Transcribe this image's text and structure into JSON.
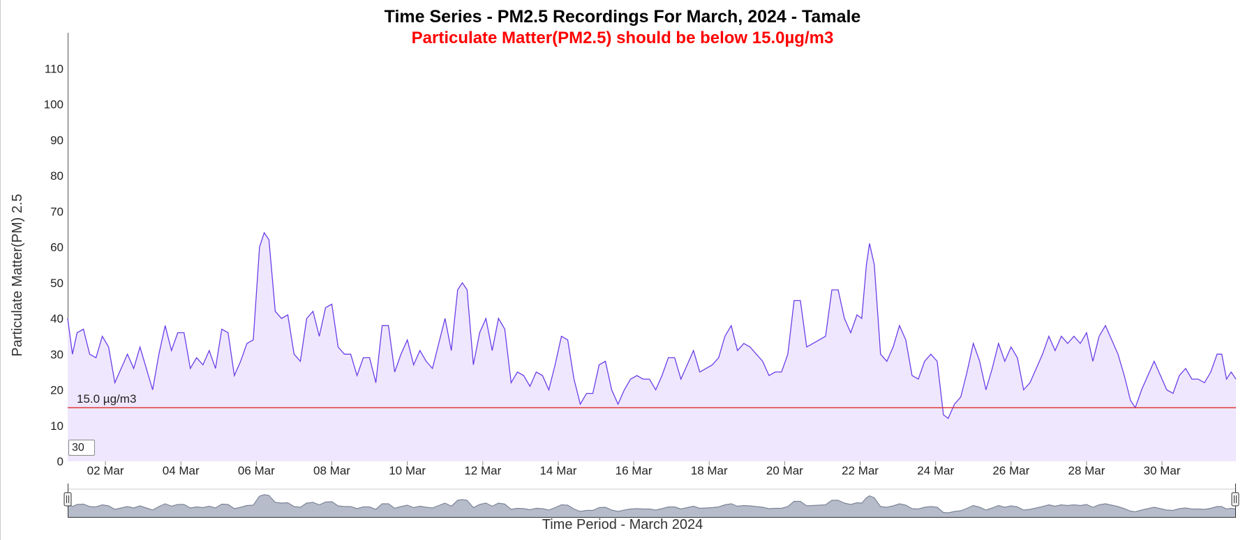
{
  "colors": {
    "line": "#6a3de8",
    "area_fill": "#efe7fd",
    "threshold": "#e03a3a",
    "subtitle": "#ff0000",
    "navigator_fill": "#b7bccb",
    "navigator_line": "#7d8597"
  },
  "rolling_period": "30",
  "chart_data": {
    "type": "area",
    "title": "Time Series - PM2.5 Recordings For March, 2024 - Tamale",
    "subtitle": "Particulate Matter(PM2.5) should be below 15.0µg/m3",
    "ylabel": "Particulate Matter(PM) 2.5",
    "xlabel": "Time Period - March 2024",
    "ylim": [
      0,
      120
    ],
    "y_ticks": [
      "0",
      "10",
      "20",
      "30",
      "40",
      "50",
      "60",
      "70",
      "80",
      "90",
      "100",
      "110"
    ],
    "x_ticks": [
      "02 Mar",
      "04 Mar",
      "06 Mar",
      "08 Mar",
      "10 Mar",
      "12 Mar",
      "14 Mar",
      "16 Mar",
      "18 Mar",
      "20 Mar",
      "22 Mar",
      "24 Mar",
      "26 Mar",
      "28 Mar",
      "30 Mar"
    ],
    "threshold": {
      "value": 15.0,
      "label": "15.0 µg/m3"
    },
    "x_start": "2024-03-01T00:00",
    "x_end": "2024-03-31T23:00",
    "series": [
      {
        "values": [
          [
            "2024-03-01T00:00",
            40
          ],
          [
            "2024-03-01T03:00",
            30
          ],
          [
            "2024-03-01T06:00",
            36
          ],
          [
            "2024-03-01T10:00",
            37
          ],
          [
            "2024-03-01T14:00",
            30
          ],
          [
            "2024-03-01T18:00",
            29
          ],
          [
            "2024-03-01T22:00",
            35
          ],
          [
            "2024-03-02T02:00",
            32
          ],
          [
            "2024-03-02T06:00",
            22
          ],
          [
            "2024-03-02T10:00",
            26
          ],
          [
            "2024-03-02T14:00",
            30
          ],
          [
            "2024-03-02T18:00",
            26
          ],
          [
            "2024-03-02T22:00",
            32
          ],
          [
            "2024-03-03T02:00",
            26
          ],
          [
            "2024-03-03T06:00",
            20
          ],
          [
            "2024-03-03T10:00",
            30
          ],
          [
            "2024-03-03T14:00",
            38
          ],
          [
            "2024-03-03T18:00",
            31
          ],
          [
            "2024-03-03T22:00",
            36
          ],
          [
            "2024-03-04T02:00",
            36
          ],
          [
            "2024-03-04T06:00",
            26
          ],
          [
            "2024-03-04T10:00",
            29
          ],
          [
            "2024-03-04T14:00",
            27
          ],
          [
            "2024-03-04T18:00",
            31
          ],
          [
            "2024-03-04T22:00",
            26
          ],
          [
            "2024-03-05T02:00",
            37
          ],
          [
            "2024-03-05T06:00",
            36
          ],
          [
            "2024-03-05T10:00",
            24
          ],
          [
            "2024-03-05T14:00",
            28
          ],
          [
            "2024-03-05T18:00",
            33
          ],
          [
            "2024-03-05T22:00",
            34
          ],
          [
            "2024-03-06T02:00",
            60
          ],
          [
            "2024-03-06T05:00",
            64
          ],
          [
            "2024-03-06T08:00",
            62
          ],
          [
            "2024-03-06T12:00",
            42
          ],
          [
            "2024-03-06T16:00",
            40
          ],
          [
            "2024-03-06T20:00",
            41
          ],
          [
            "2024-03-07T00:00",
            30
          ],
          [
            "2024-03-07T04:00",
            28
          ],
          [
            "2024-03-07T08:00",
            40
          ],
          [
            "2024-03-07T12:00",
            42
          ],
          [
            "2024-03-07T16:00",
            35
          ],
          [
            "2024-03-07T20:00",
            43
          ],
          [
            "2024-03-08T00:00",
            44
          ],
          [
            "2024-03-08T04:00",
            32
          ],
          [
            "2024-03-08T08:00",
            30
          ],
          [
            "2024-03-08T12:00",
            30
          ],
          [
            "2024-03-08T16:00",
            24
          ],
          [
            "2024-03-08T20:00",
            29
          ],
          [
            "2024-03-09T00:00",
            29
          ],
          [
            "2024-03-09T04:00",
            22
          ],
          [
            "2024-03-09T08:00",
            38
          ],
          [
            "2024-03-09T12:00",
            38
          ],
          [
            "2024-03-09T16:00",
            25
          ],
          [
            "2024-03-09T20:00",
            30
          ],
          [
            "2024-03-10T00:00",
            34
          ],
          [
            "2024-03-10T04:00",
            27
          ],
          [
            "2024-03-10T08:00",
            31
          ],
          [
            "2024-03-10T12:00",
            28
          ],
          [
            "2024-03-10T16:00",
            26
          ],
          [
            "2024-03-10T20:00",
            33
          ],
          [
            "2024-03-11T00:00",
            40
          ],
          [
            "2024-03-11T04:00",
            31
          ],
          [
            "2024-03-11T08:00",
            48
          ],
          [
            "2024-03-11T11:00",
            50
          ],
          [
            "2024-03-11T14:00",
            48
          ],
          [
            "2024-03-11T18:00",
            27
          ],
          [
            "2024-03-11T22:00",
            36
          ],
          [
            "2024-03-12T02:00",
            40
          ],
          [
            "2024-03-12T06:00",
            31
          ],
          [
            "2024-03-12T10:00",
            40
          ],
          [
            "2024-03-12T14:00",
            37
          ],
          [
            "2024-03-12T18:00",
            22
          ],
          [
            "2024-03-12T22:00",
            25
          ],
          [
            "2024-03-13T02:00",
            24
          ],
          [
            "2024-03-13T06:00",
            21
          ],
          [
            "2024-03-13T10:00",
            25
          ],
          [
            "2024-03-13T14:00",
            24
          ],
          [
            "2024-03-13T18:00",
            20
          ],
          [
            "2024-03-13T22:00",
            27
          ],
          [
            "2024-03-14T02:00",
            35
          ],
          [
            "2024-03-14T06:00",
            34
          ],
          [
            "2024-03-14T10:00",
            23
          ],
          [
            "2024-03-14T14:00",
            16
          ],
          [
            "2024-03-14T18:00",
            19
          ],
          [
            "2024-03-14T22:00",
            19
          ],
          [
            "2024-03-15T02:00",
            27
          ],
          [
            "2024-03-15T06:00",
            28
          ],
          [
            "2024-03-15T10:00",
            20
          ],
          [
            "2024-03-15T14:00",
            16
          ],
          [
            "2024-03-15T18:00",
            20
          ],
          [
            "2024-03-15T22:00",
            23
          ],
          [
            "2024-03-16T02:00",
            24
          ],
          [
            "2024-03-16T06:00",
            23
          ],
          [
            "2024-03-16T10:00",
            23
          ],
          [
            "2024-03-16T14:00",
            20
          ],
          [
            "2024-03-16T18:00",
            24
          ],
          [
            "2024-03-16T22:00",
            29
          ],
          [
            "2024-03-17T02:00",
            29
          ],
          [
            "2024-03-17T06:00",
            23
          ],
          [
            "2024-03-17T10:00",
            27
          ],
          [
            "2024-03-17T14:00",
            31
          ],
          [
            "2024-03-17T18:00",
            25
          ],
          [
            "2024-03-17T22:00",
            26
          ],
          [
            "2024-03-18T02:00",
            27
          ],
          [
            "2024-03-18T06:00",
            29
          ],
          [
            "2024-03-18T10:00",
            35
          ],
          [
            "2024-03-18T14:00",
            38
          ],
          [
            "2024-03-18T18:00",
            31
          ],
          [
            "2024-03-18T22:00",
            33
          ],
          [
            "2024-03-19T02:00",
            32
          ],
          [
            "2024-03-19T06:00",
            30
          ],
          [
            "2024-03-19T10:00",
            28
          ],
          [
            "2024-03-19T14:00",
            24
          ],
          [
            "2024-03-19T18:00",
            25
          ],
          [
            "2024-03-19T22:00",
            25
          ],
          [
            "2024-03-20T02:00",
            30
          ],
          [
            "2024-03-20T06:00",
            45
          ],
          [
            "2024-03-20T10:00",
            45
          ],
          [
            "2024-03-20T14:00",
            32
          ],
          [
            "2024-03-20T18:00",
            33
          ],
          [
            "2024-03-20T22:00",
            34
          ],
          [
            "2024-03-21T02:00",
            35
          ],
          [
            "2024-03-21T06:00",
            48
          ],
          [
            "2024-03-21T10:00",
            48
          ],
          [
            "2024-03-21T14:00",
            40
          ],
          [
            "2024-03-21T18:00",
            36
          ],
          [
            "2024-03-21T22:00",
            41
          ],
          [
            "2024-03-22T01:00",
            40
          ],
          [
            "2024-03-22T04:00",
            55
          ],
          [
            "2024-03-22T06:00",
            61
          ],
          [
            "2024-03-22T09:00",
            55
          ],
          [
            "2024-03-22T13:00",
            30
          ],
          [
            "2024-03-22T17:00",
            28
          ],
          [
            "2024-03-22T21:00",
            32
          ],
          [
            "2024-03-23T01:00",
            38
          ],
          [
            "2024-03-23T05:00",
            34
          ],
          [
            "2024-03-23T09:00",
            24
          ],
          [
            "2024-03-23T13:00",
            23
          ],
          [
            "2024-03-23T17:00",
            28
          ],
          [
            "2024-03-23T21:00",
            30
          ],
          [
            "2024-03-24T01:00",
            28
          ],
          [
            "2024-03-24T05:00",
            13
          ],
          [
            "2024-03-24T08:00",
            12
          ],
          [
            "2024-03-24T12:00",
            16
          ],
          [
            "2024-03-24T16:00",
            18
          ],
          [
            "2024-03-24T20:00",
            25
          ],
          [
            "2024-03-25T00:00",
            33
          ],
          [
            "2024-03-25T04:00",
            28
          ],
          [
            "2024-03-25T08:00",
            20
          ],
          [
            "2024-03-25T12:00",
            26
          ],
          [
            "2024-03-25T16:00",
            33
          ],
          [
            "2024-03-25T20:00",
            28
          ],
          [
            "2024-03-26T00:00",
            32
          ],
          [
            "2024-03-26T04:00",
            29
          ],
          [
            "2024-03-26T08:00",
            20
          ],
          [
            "2024-03-26T12:00",
            22
          ],
          [
            "2024-03-26T16:00",
            26
          ],
          [
            "2024-03-26T20:00",
            30
          ],
          [
            "2024-03-27T00:00",
            35
          ],
          [
            "2024-03-27T04:00",
            31
          ],
          [
            "2024-03-27T08:00",
            35
          ],
          [
            "2024-03-27T12:00",
            33
          ],
          [
            "2024-03-27T16:00",
            35
          ],
          [
            "2024-03-27T20:00",
            33
          ],
          [
            "2024-03-28T00:00",
            36
          ],
          [
            "2024-03-28T04:00",
            28
          ],
          [
            "2024-03-28T08:00",
            35
          ],
          [
            "2024-03-28T12:00",
            38
          ],
          [
            "2024-03-28T16:00",
            34
          ],
          [
            "2024-03-28T20:00",
            30
          ],
          [
            "2024-03-29T00:00",
            24
          ],
          [
            "2024-03-29T04:00",
            17
          ],
          [
            "2024-03-29T07:00",
            15
          ],
          [
            "2024-03-29T11:00",
            20
          ],
          [
            "2024-03-29T15:00",
            24
          ],
          [
            "2024-03-29T19:00",
            28
          ],
          [
            "2024-03-29T23:00",
            24
          ],
          [
            "2024-03-30T03:00",
            20
          ],
          [
            "2024-03-30T07:00",
            19
          ],
          [
            "2024-03-30T11:00",
            24
          ],
          [
            "2024-03-30T15:00",
            26
          ],
          [
            "2024-03-30T19:00",
            23
          ],
          [
            "2024-03-30T23:00",
            23
          ],
          [
            "2024-03-31T03:00",
            22
          ],
          [
            "2024-03-31T07:00",
            25
          ],
          [
            "2024-03-31T11:00",
            30
          ],
          [
            "2024-03-31T14:00",
            30
          ],
          [
            "2024-03-31T17:00",
            23
          ],
          [
            "2024-03-31T20:00",
            25
          ],
          [
            "2024-03-31T23:00",
            23
          ]
        ]
      }
    ]
  }
}
